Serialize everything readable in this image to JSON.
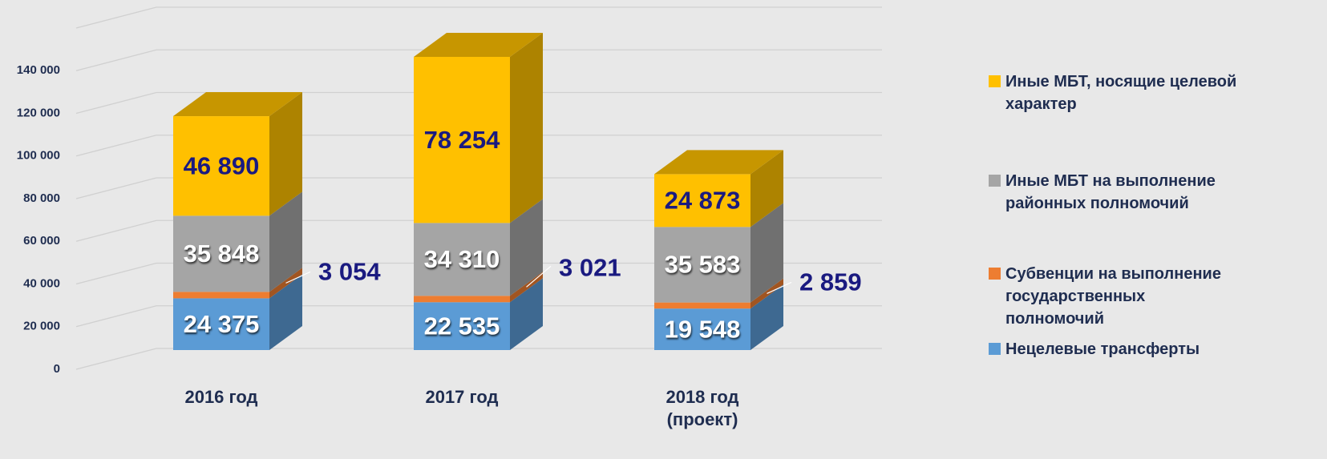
{
  "chart_data": {
    "type": "bar3d_stacked",
    "categories": [
      "2016 год",
      "2017 год",
      "2018 год (проект)"
    ],
    "series": [
      {
        "name": "Нецелевые трансферты",
        "color": "#5b9bd5",
        "values": [
          24375,
          22535,
          19548
        ],
        "value_labels": [
          "24 375",
          "22 535",
          "19 548"
        ]
      },
      {
        "name": "Субвенции на выполнение государственных полномочий",
        "color": "#ed7d31",
        "values": [
          3054,
          3021,
          2859
        ],
        "value_labels": [
          "3 054",
          "3 021",
          "2 859"
        ]
      },
      {
        "name": "Иные МБТ на выполнение районных полномочий",
        "color": "#a5a5a5",
        "values": [
          35848,
          34310,
          35583
        ],
        "value_labels": [
          "35 848",
          "34 310",
          "35 583"
        ]
      },
      {
        "name": "Иные МБТ, носящие целевой характер",
        "color": "#ffc000",
        "values": [
          46890,
          78254,
          24873
        ],
        "value_labels": [
          "46 890",
          "78 254",
          "24 873"
        ]
      }
    ],
    "ylim": [
      0,
      160000
    ],
    "yticks": [
      0,
      {
        "value": 20000,
        "label": "20 000"
      },
      {
        "value": 40000,
        "label": "40 000"
      },
      {
        "value": 60000,
        "label": "60 000"
      },
      {
        "value": 80000,
        "label": "80 000"
      },
      {
        "value": 100000,
        "label": "100 000"
      },
      {
        "value": 120000,
        "label": "120 000"
      },
      {
        "value": 140000,
        "label": "140 000"
      }
    ],
    "grid": true
  }
}
